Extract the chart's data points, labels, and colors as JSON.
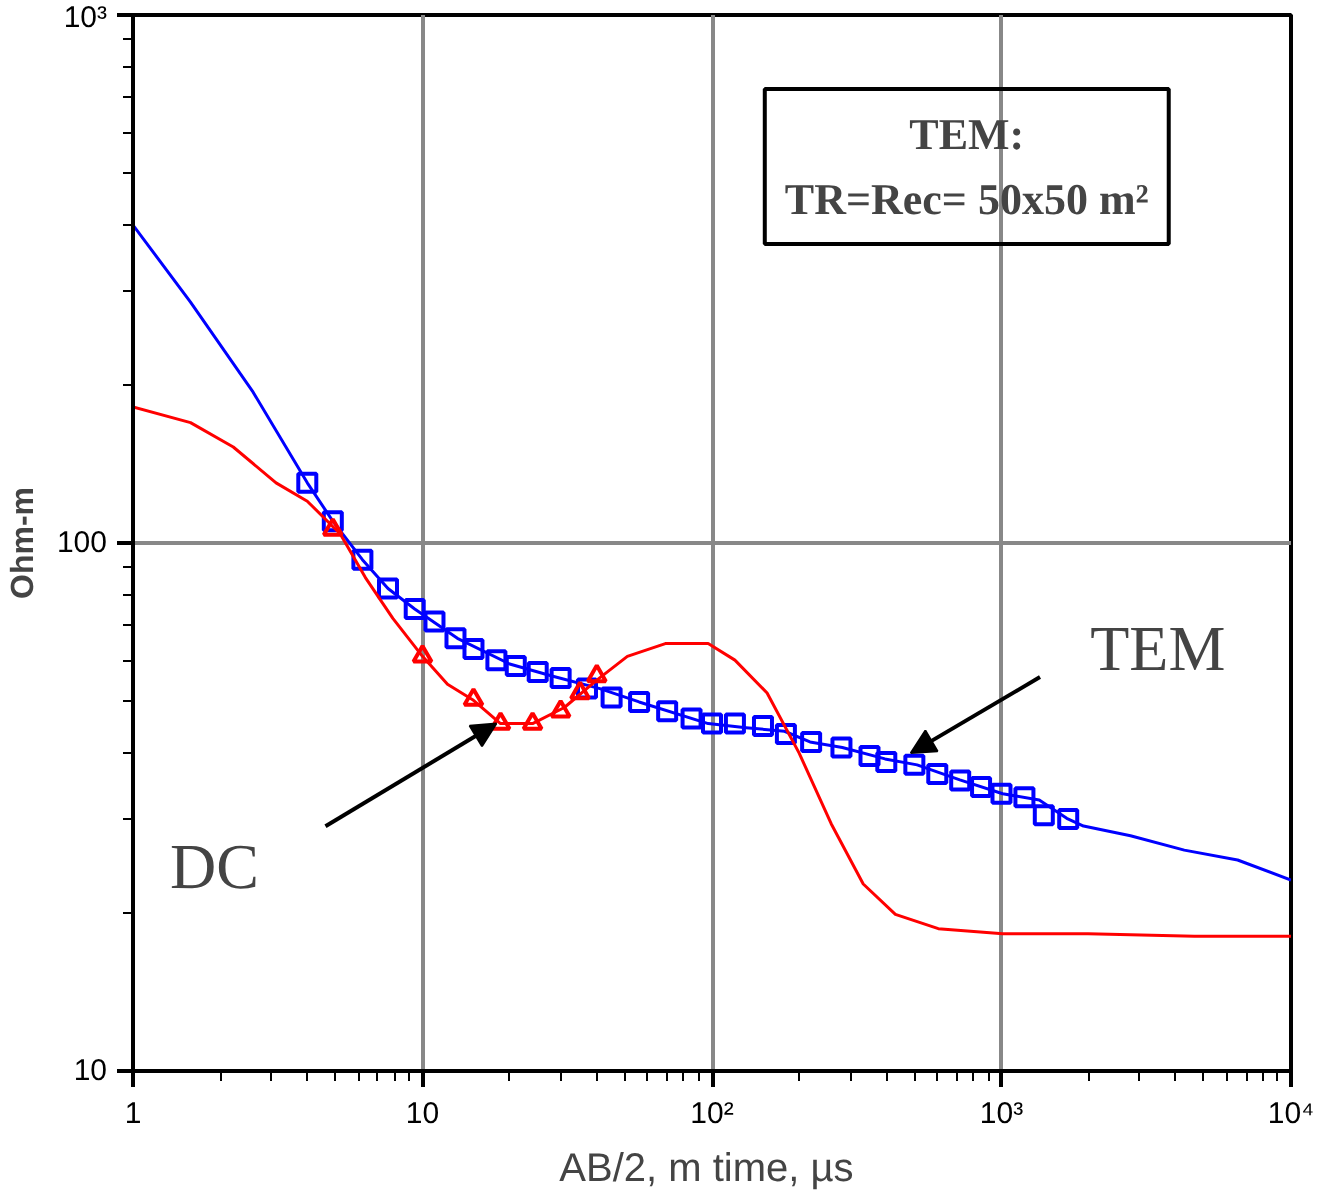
{
  "chart_data": {
    "type": "line",
    "xlabel": "AB/2, m  time, µs",
    "ylabel": "Ohm-m",
    "log": "xy",
    "grid": true,
    "xlim": [
      1,
      10000
    ],
    "ylim": [
      10,
      1000
    ],
    "xticks": [
      1,
      10,
      {
        "value": 100,
        "label": "10²"
      },
      {
        "value": 1000,
        "label": "10³"
      },
      {
        "value": 10000,
        "label": "10⁴"
      }
    ],
    "yticks": [
      10,
      100,
      {
        "value": 1000,
        "label": "10³"
      }
    ],
    "series": [
      {
        "color": "#0000ff",
        "marker": "none",
        "x": [
          1,
          1.58,
          2.6,
          4.0,
          4.9,
          6.2,
          7.6,
          9.4,
          13.2,
          20,
          28,
          41,
          56,
          97,
          131,
          178,
          218,
          282,
          396,
          511,
          718,
          1010,
          1350,
          1680,
          1920,
          2790,
          4280,
          6540,
          10000
        ],
        "values": [
          400,
          286,
          193,
          130,
          110,
          93,
          82,
          75,
          66,
          59,
          56,
          53,
          50,
          45.5,
          44.7,
          44,
          42,
          41,
          39,
          38,
          35.6,
          33.5,
          32.6,
          30.1,
          29.1,
          27.9,
          26.2,
          25.1,
          23
        ]
      },
      {
        "type": "scatter",
        "color": "#0000ff",
        "marker": "square",
        "x": [
          4,
          4.9,
          6.2,
          7.6,
          9.4,
          11,
          13,
          15,
          18,
          21,
          25,
          30,
          37,
          45,
          56,
          70,
          85,
          100,
          120,
          150,
          180,
          220,
          280,
          350,
          400,
          500,
          600,
          720,
          850,
          1000,
          1200,
          1400,
          1700
        ],
        "values": [
          130,
          110,
          93,
          82,
          75,
          71,
          66,
          63,
          60,
          58.5,
          57,
          55.5,
          53,
          51,
          50,
          48,
          46.5,
          45.5,
          45.5,
          45,
          43.5,
          42,
          41,
          39.5,
          38.5,
          38,
          36.5,
          35.5,
          34.5,
          33.5,
          33,
          30.5,
          30
        ]
      },
      {
        "color": "#ff0000",
        "marker": "none",
        "x": [
          1,
          1.58,
          2.22,
          3.12,
          4.0,
          5.2,
          6.35,
          7.9,
          10,
          12.2,
          14.9,
          18.6,
          24,
          30.9,
          40,
          51,
          69,
          97,
          120,
          155,
          200,
          258,
          333,
          430,
          605,
          1010,
          1990,
          4640,
          10000
        ],
        "values": [
          181,
          169,
          152,
          130,
          120,
          104,
          86,
          72,
          61,
          54,
          50.5,
          45.5,
          45.5,
          48.8,
          55,
          61,
          64.5,
          64.5,
          60,
          52,
          40,
          29.4,
          22.6,
          19.8,
          18.6,
          18.2,
          18.2,
          18,
          18
        ]
      },
      {
        "type": "scatter",
        "color": "#ff0000",
        "marker": "triangle",
        "x": [
          4.9,
          10,
          15,
          18.6,
          24,
          30,
          35,
          40
        ],
        "values": [
          106,
          61,
          50.5,
          45.5,
          45.5,
          48,
          52,
          56
        ]
      }
    ],
    "annotations": [
      "TEM:\nTR=Rec= 50x50 m²",
      {
        "text": "DC",
        "x": 18,
        "y": 45.5
      },
      {
        "text": "TEM",
        "x": 486,
        "y": 40
      }
    ]
  }
}
